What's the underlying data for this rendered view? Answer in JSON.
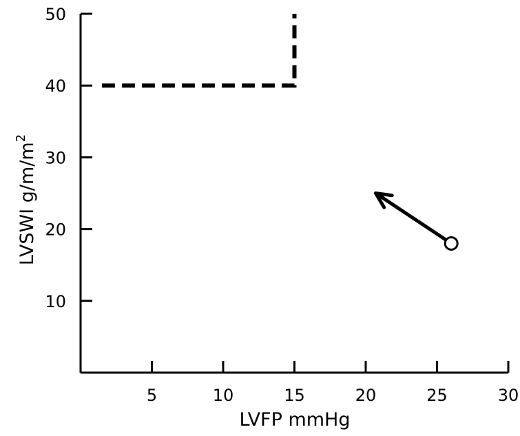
{
  "chart_data": {
    "type": "line",
    "xlabel": "LVFP mmHg",
    "ylabel_base": "LVSWI g/m/m",
    "ylabel_sup": "2",
    "xlim": [
      0,
      30
    ],
    "ylim": [
      0,
      50
    ],
    "x_ticks": [
      5,
      10,
      15,
      20,
      25,
      30
    ],
    "x_tick_labels": [
      "5",
      "10",
      "15",
      "20",
      "25",
      "30"
    ],
    "y_ticks": [
      10,
      20,
      30,
      40,
      50
    ],
    "y_tick_labels": [
      "10",
      "20",
      "30",
      "40",
      "50"
    ],
    "grid": false,
    "series": [
      {
        "style": "dashed",
        "color": "#000000",
        "points": [
          [
            1.5,
            40
          ],
          [
            15,
            40
          ],
          [
            15,
            50
          ]
        ]
      }
    ],
    "annotations": [
      {
        "type": "arrow",
        "from": [
          26,
          18
        ],
        "to": [
          20.7,
          25
        ],
        "start_marker": "open-circle",
        "color": "#000000"
      }
    ]
  }
}
